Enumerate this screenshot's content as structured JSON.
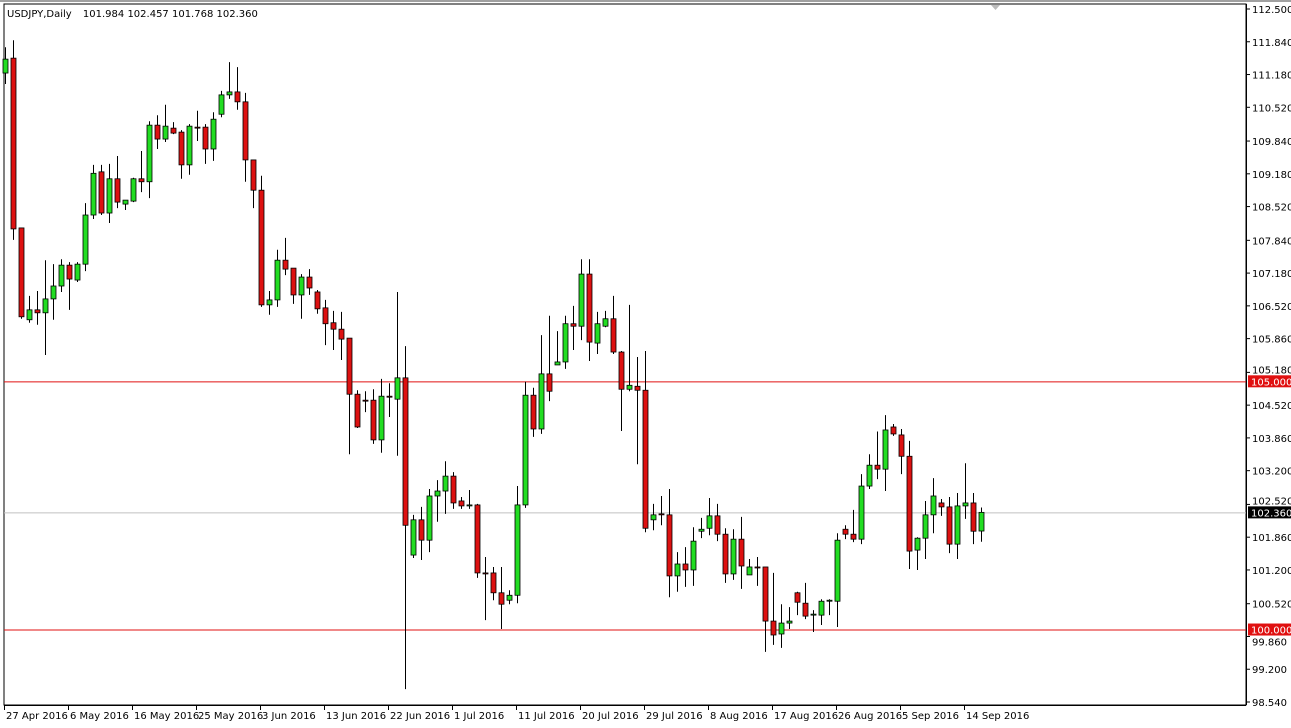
{
  "header": {
    "symbol": "USDJPY,Daily",
    "ohlc_readout": "101.984 102.457 101.768 102.360"
  },
  "colors": {
    "bull": "#22dd22",
    "bear": "#dd1111",
    "level_line": "#e01010",
    "current_price_line": "#c0c0c0",
    "current_price_label_bg": "#000000"
  },
  "chart_data": {
    "type": "candlestick",
    "title": "USDJPY,Daily",
    "ylim": [
      98.54,
      112.5
    ],
    "grid": false,
    "y_ticks": [
      "112.500",
      "111.840",
      "111.180",
      "110.520",
      "109.840",
      "109.180",
      "108.520",
      "107.840",
      "107.180",
      "106.520",
      "105.860",
      "105.180",
      "104.520",
      "103.860",
      "103.200",
      "102.520",
      "101.860",
      "101.200",
      "100.520",
      "99.860",
      "99.200",
      "98.540"
    ],
    "x_tick_labels": [
      "27 Apr 2016",
      "6 May 2016",
      "16 May 2016",
      "25 May 2016",
      "3 Jun 2016",
      "13 Jun 2016",
      "22 Jun 2016",
      "1 Jul 2016",
      "11 Jul 2016",
      "20 Jul 2016",
      "29 Jul 2016",
      "8 Aug 2016",
      "17 Aug 2016",
      "26 Aug 2016",
      "5 Sep 2016",
      "14 Sep 2016"
    ],
    "bars_per_x_tick": 8,
    "horizontal_levels": [
      {
        "value": 105.0,
        "label": "105.000"
      },
      {
        "value": 100.0,
        "label": "100.000"
      }
    ],
    "current_price": {
      "value": 102.36,
      "label": "102.360"
    },
    "ohlc_fields": [
      "open",
      "high",
      "low",
      "close"
    ],
    "ohlc": [
      [
        111.21,
        111.73,
        110.99,
        111.49
      ],
      [
        111.51,
        111.87,
        107.85,
        108.07
      ],
      [
        108.09,
        108.09,
        106.26,
        106.3
      ],
      [
        106.24,
        106.72,
        106.18,
        106.44
      ],
      [
        106.44,
        106.82,
        106.14,
        106.38
      ],
      [
        106.38,
        107.44,
        105.53,
        106.66
      ],
      [
        106.66,
        107.36,
        106.24,
        106.92
      ],
      [
        106.92,
        107.46,
        106.8,
        107.34
      ],
      [
        107.34,
        107.4,
        106.44,
        107.06
      ],
      [
        107.04,
        107.4,
        107.0,
        107.36
      ],
      [
        107.36,
        108.59,
        107.22,
        108.35
      ],
      [
        108.35,
        109.36,
        108.27,
        109.19
      ],
      [
        109.22,
        109.36,
        108.35,
        108.39
      ],
      [
        108.39,
        109.38,
        108.19,
        109.08
      ],
      [
        109.08,
        109.54,
        108.49,
        108.61
      ],
      [
        108.57,
        108.65,
        108.45,
        108.65
      ],
      [
        108.63,
        109.1,
        108.61,
        109.08
      ],
      [
        109.08,
        109.64,
        108.81,
        109.02
      ],
      [
        109.02,
        110.24,
        108.69,
        110.16
      ],
      [
        110.16,
        110.36,
        109.68,
        109.88
      ],
      [
        109.88,
        110.57,
        109.82,
        110.14
      ],
      [
        110.1,
        110.22,
        109.98,
        110.0
      ],
      [
        110.02,
        110.06,
        109.08,
        109.36
      ],
      [
        109.36,
        110.18,
        109.16,
        110.14
      ],
      [
        110.12,
        110.45,
        109.84,
        110.1
      ],
      [
        110.12,
        110.18,
        109.38,
        109.68
      ],
      [
        109.68,
        110.42,
        109.44,
        110.28
      ],
      [
        110.38,
        110.85,
        110.32,
        110.77
      ],
      [
        110.77,
        111.43,
        110.69,
        110.83
      ],
      [
        110.83,
        111.33,
        110.47,
        110.63
      ],
      [
        110.63,
        110.81,
        109.02,
        109.46
      ],
      [
        109.46,
        109.46,
        108.49,
        108.85
      ],
      [
        108.85,
        109.14,
        106.5,
        106.54
      ],
      [
        106.54,
        106.82,
        106.34,
        106.64
      ],
      [
        106.64,
        107.65,
        106.5,
        107.44
      ],
      [
        107.44,
        107.89,
        107.14,
        107.26
      ],
      [
        107.28,
        107.28,
        106.56,
        106.74
      ],
      [
        106.74,
        107.16,
        106.26,
        107.1
      ],
      [
        107.1,
        107.26,
        106.74,
        106.88
      ],
      [
        106.8,
        106.84,
        106.36,
        106.46
      ],
      [
        106.48,
        106.64,
        105.73,
        106.16
      ],
      [
        106.18,
        106.42,
        105.63,
        106.05
      ],
      [
        106.05,
        106.4,
        105.43,
        105.85
      ],
      [
        105.87,
        105.87,
        103.53,
        104.74
      ],
      [
        104.74,
        104.82,
        104.06,
        104.08
      ],
      [
        104.62,
        104.8,
        104.38,
        104.6
      ],
      [
        104.62,
        104.84,
        103.74,
        103.82
      ],
      [
        103.82,
        105.05,
        103.56,
        104.7
      ],
      [
        104.7,
        104.96,
        104.28,
        104.68
      ],
      [
        104.64,
        106.8,
        103.5,
        105.07
      ],
      [
        105.07,
        105.71,
        98.8,
        102.1
      ],
      [
        101.5,
        102.31,
        101.44,
        102.21
      ],
      [
        102.21,
        102.47,
        101.4,
        101.8
      ],
      [
        101.8,
        102.83,
        101.56,
        102.69
      ],
      [
        102.69,
        103.01,
        102.17,
        102.79
      ],
      [
        102.79,
        103.39,
        102.33,
        103.09
      ],
      [
        103.09,
        103.17,
        102.43,
        102.55
      ],
      [
        102.59,
        102.67,
        102.43,
        102.49
      ],
      [
        102.49,
        102.81,
        102.43,
        102.51
      ],
      [
        102.51,
        102.53,
        101.04,
        101.14
      ],
      [
        101.14,
        101.46,
        100.19,
        101.12
      ],
      [
        101.14,
        101.26,
        100.59,
        100.74
      ],
      [
        100.74,
        101.26,
        100.01,
        100.51
      ],
      [
        100.59,
        100.79,
        100.51,
        100.69
      ],
      [
        100.69,
        102.89,
        100.53,
        102.51
      ],
      [
        102.51,
        104.99,
        102.45,
        104.72
      ],
      [
        104.72,
        104.87,
        103.88,
        104.04
      ],
      [
        104.04,
        105.93,
        103.94,
        105.15
      ],
      [
        105.15,
        106.32,
        104.6,
        104.8
      ],
      [
        105.33,
        106.01,
        105.33,
        105.39
      ],
      [
        105.39,
        106.32,
        105.25,
        106.16
      ],
      [
        106.16,
        106.52,
        105.63,
        106.11
      ],
      [
        106.11,
        107.46,
        105.83,
        107.16
      ],
      [
        107.16,
        107.46,
        105.41,
        105.79
      ],
      [
        105.77,
        106.4,
        105.55,
        106.16
      ],
      [
        106.11,
        106.42,
        106.09,
        106.26
      ],
      [
        106.26,
        106.72,
        105.55,
        105.59
      ],
      [
        105.59,
        105.61,
        104.0,
        104.84
      ],
      [
        104.84,
        106.54,
        104.8,
        104.92
      ],
      [
        104.9,
        105.49,
        103.33,
        104.82
      ],
      [
        104.82,
        105.61,
        101.96,
        102.04
      ],
      [
        102.21,
        102.53,
        102.0,
        102.31
      ],
      [
        102.33,
        102.69,
        102.1,
        102.31
      ],
      [
        102.31,
        102.83,
        100.65,
        101.08
      ],
      [
        101.08,
        101.56,
        100.76,
        101.32
      ],
      [
        101.32,
        101.66,
        100.86,
        101.2
      ],
      [
        101.2,
        102.06,
        100.88,
        101.78
      ],
      [
        101.98,
        102.25,
        101.84,
        102.02
      ],
      [
        102.04,
        102.65,
        101.9,
        102.29
      ],
      [
        102.29,
        102.53,
        101.78,
        101.92
      ],
      [
        101.92,
        102.04,
        100.94,
        101.12
      ],
      [
        101.12,
        102.02,
        101.0,
        101.82
      ],
      [
        101.82,
        102.27,
        100.82,
        101.28
      ],
      [
        101.1,
        101.42,
        101.1,
        101.26
      ],
      [
        101.26,
        101.46,
        100.88,
        101.24
      ],
      [
        101.26,
        101.26,
        99.55,
        100.17
      ],
      [
        100.17,
        101.14,
        99.69,
        99.89
      ],
      [
        99.91,
        100.51,
        99.63,
        100.13
      ],
      [
        100.13,
        100.45,
        100.01,
        100.17
      ],
      [
        100.74,
        100.76,
        100.29,
        100.55
      ],
      [
        100.53,
        100.94,
        100.21,
        100.27
      ],
      [
        100.29,
        100.39,
        99.95,
        100.31
      ],
      [
        100.29,
        100.61,
        100.09,
        100.57
      ],
      [
        100.57,
        100.61,
        100.29,
        100.59
      ],
      [
        100.57,
        101.94,
        100.05,
        101.8
      ],
      [
        102.02,
        102.1,
        101.82,
        101.92
      ],
      [
        101.92,
        102.41,
        101.76,
        101.82
      ],
      [
        101.82,
        103.13,
        101.72,
        102.89
      ],
      [
        102.89,
        103.53,
        102.83,
        103.31
      ],
      [
        103.31,
        103.99,
        103.03,
        103.23
      ],
      [
        103.23,
        104.32,
        102.79,
        104.02
      ],
      [
        104.08,
        104.14,
        103.9,
        103.94
      ],
      [
        103.92,
        104.04,
        103.13,
        103.49
      ],
      [
        103.49,
        103.8,
        101.22,
        101.58
      ],
      [
        101.6,
        101.86,
        101.2,
        101.84
      ],
      [
        101.84,
        102.59,
        101.42,
        102.31
      ],
      [
        102.31,
        103.05,
        101.94,
        102.69
      ],
      [
        102.55,
        102.63,
        102.29,
        102.47
      ],
      [
        102.47,
        102.67,
        101.54,
        101.72
      ],
      [
        101.72,
        102.75,
        101.42,
        102.49
      ],
      [
        102.49,
        103.35,
        102.23,
        102.55
      ],
      [
        102.55,
        102.75,
        101.72,
        101.98
      ],
      [
        101.984,
        102.457,
        101.768,
        102.36
      ]
    ]
  }
}
